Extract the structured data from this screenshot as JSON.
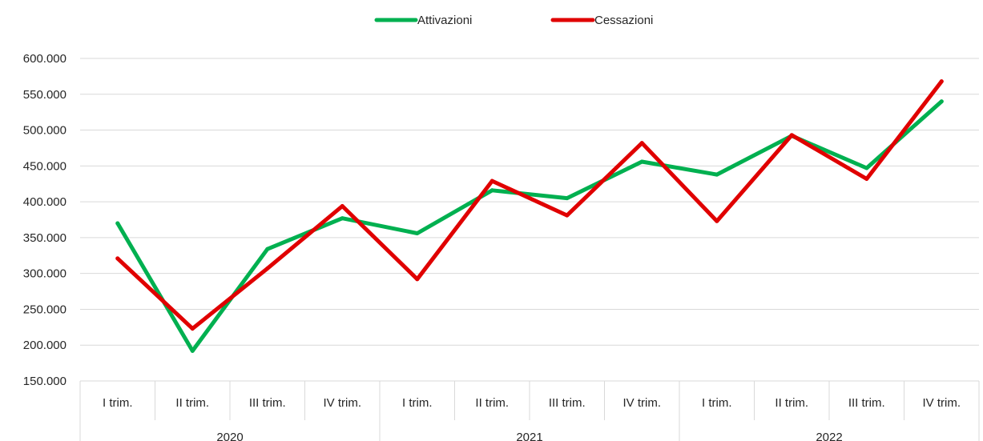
{
  "chart_data": {
    "type": "line",
    "categories": [
      "I trim.",
      "II trim.",
      "III trim.",
      "IV trim.",
      "I trim.",
      "II trim.",
      "III trim.",
      "IV trim.",
      "I trim.",
      "II trim.",
      "III trim.",
      "IV trim."
    ],
    "groups": [
      {
        "label": "2020",
        "count": 4
      },
      {
        "label": "2021",
        "count": 4
      },
      {
        "label": "2022",
        "count": 4
      }
    ],
    "series": [
      {
        "name": "Attivazioni",
        "color": "#00b050",
        "values": [
          370000,
          192000,
          334000,
          377000,
          356000,
          416000,
          405000,
          456000,
          438000,
          492000,
          447000,
          540000
        ]
      },
      {
        "name": "Cessazioni",
        "color": "#e00000",
        "values": [
          321000,
          223000,
          307000,
          394000,
          292000,
          429000,
          381000,
          482000,
          373000,
          493000,
          432000,
          568000
        ]
      }
    ],
    "y_ticks": [
      "150.000",
      "200.000",
      "250.000",
      "300.000",
      "350.000",
      "400.000",
      "450.000",
      "500.000",
      "550.000",
      "600.000"
    ],
    "ylim": [
      150000,
      600000
    ],
    "grid": true,
    "legend_position": "top-center",
    "title": "",
    "xlabel": "",
    "ylabel": ""
  }
}
